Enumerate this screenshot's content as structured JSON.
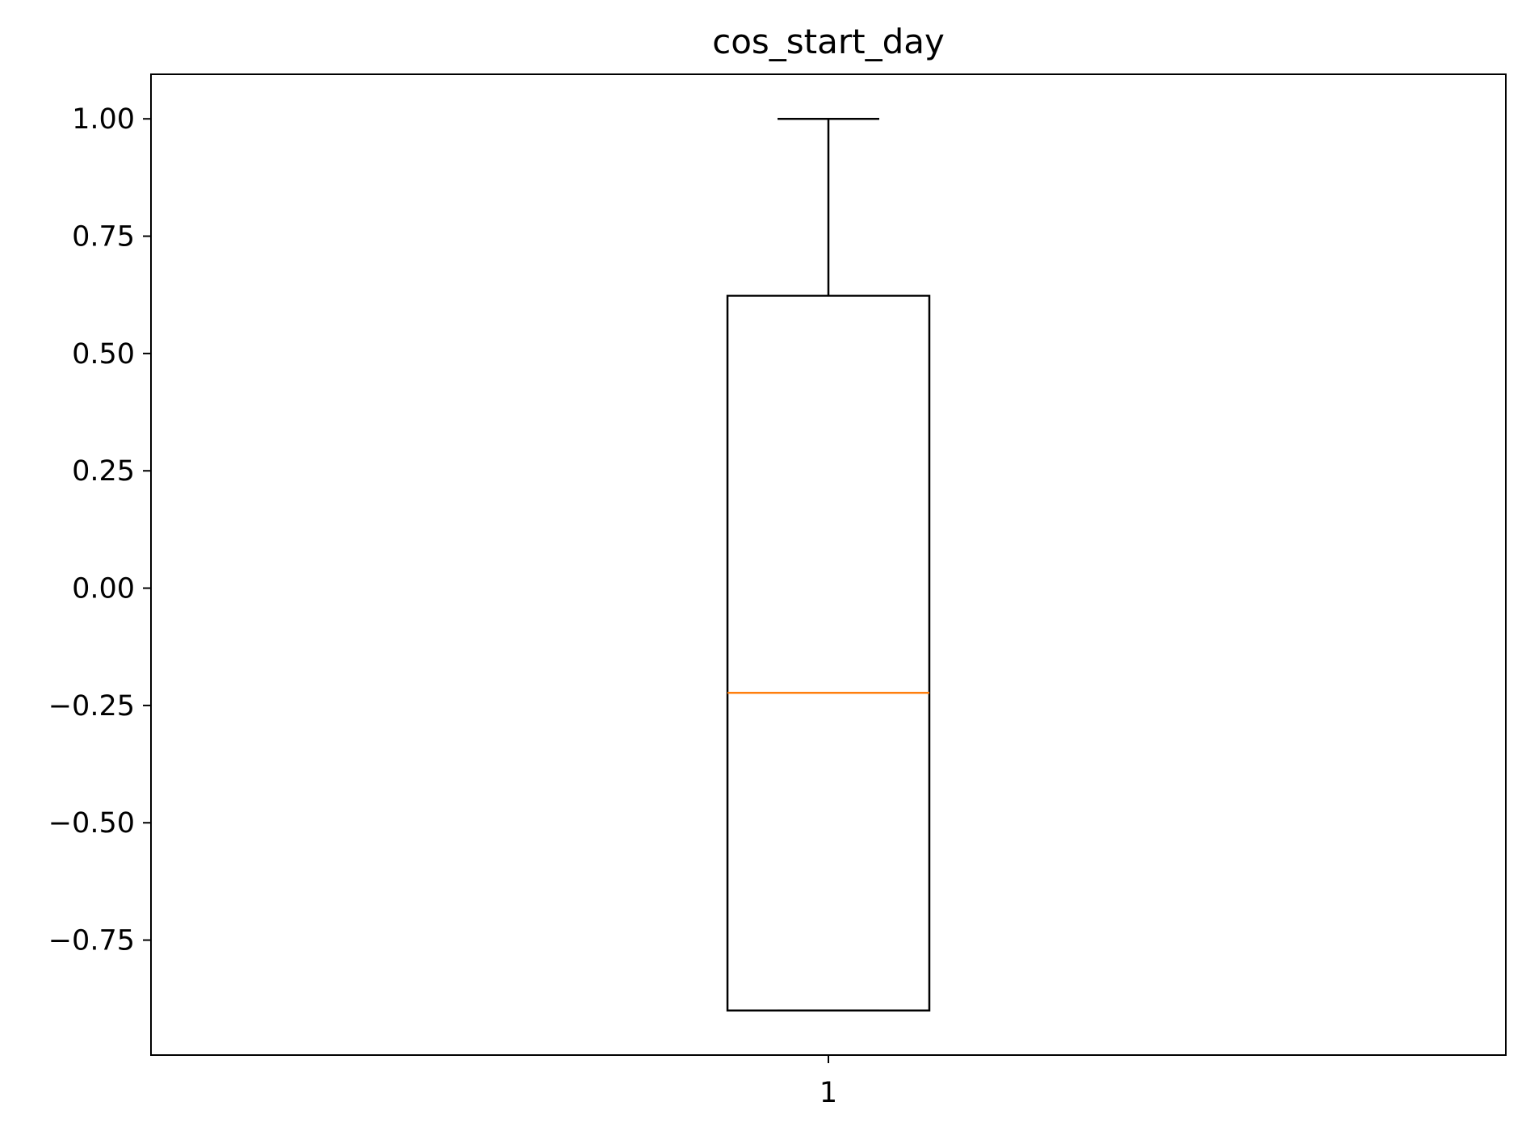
{
  "chart_data": {
    "type": "box",
    "title": "cos_start_day",
    "xlabel": "",
    "ylabel": "",
    "categories": [
      "1"
    ],
    "boxes": [
      {
        "category": "1",
        "whisker_low": -0.9,
        "q1": -0.9,
        "median": -0.223,
        "q3": 0.623,
        "whisker_high": 1.0
      }
    ],
    "ylim": [
      -0.995,
      1.095
    ],
    "yticks": [
      -0.75,
      -0.5,
      -0.25,
      0.0,
      0.25,
      0.5,
      0.75,
      1.0
    ],
    "ytick_labels": [
      "−0.75",
      "−0.50",
      "−0.25",
      "0.00",
      "0.25",
      "0.50",
      "0.75",
      "1.00"
    ],
    "grid": false,
    "colors": {
      "box": "#000000",
      "median": "#ff7f0e"
    }
  }
}
